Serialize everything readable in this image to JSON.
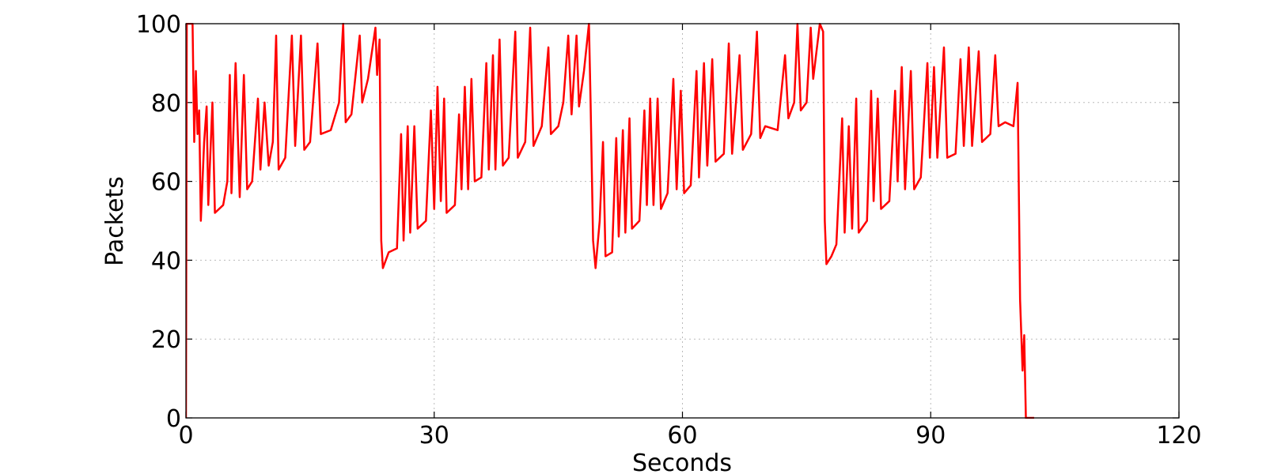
{
  "chart_data": {
    "type": "line",
    "x_label": "Seconds",
    "y_label": "Packets",
    "xlim": [
      0,
      120
    ],
    "ylim": [
      0,
      100
    ],
    "xticks": [
      0,
      30,
      60,
      90,
      120
    ],
    "yticks": [
      0,
      20,
      40,
      60,
      80,
      100
    ],
    "grid": true,
    "series": [
      {
        "name": "Packets",
        "color": "#ff0000",
        "x": [
          0,
          0.1,
          0.8,
          1.0,
          1.2,
          1.4,
          1.6,
          1.8,
          2.2,
          2.5,
          2.7,
          3.2,
          3.5,
          4.5,
          5.0,
          5.3,
          5.5,
          6.0,
          6.5,
          7.0,
          7.4,
          8.0,
          8.7,
          9.0,
          9.5,
          10.0,
          10.5,
          10.9,
          11.2,
          12.0,
          12.8,
          13.2,
          13.9,
          14.3,
          15.0,
          15.9,
          16.3,
          17.5,
          18.5,
          19.0,
          19.3,
          20.0,
          21.0,
          21.3,
          22.0,
          22.9,
          23.1,
          23.4,
          23.6,
          23.8,
          24.5,
          25.5,
          26.0,
          26.3,
          26.8,
          27.1,
          27.6,
          28.0,
          29.0,
          29.6,
          30.0,
          30.4,
          30.8,
          31.2,
          31.5,
          32.5,
          33.0,
          33.3,
          33.7,
          34.1,
          34.5,
          34.9,
          35.7,
          36.3,
          36.6,
          37.1,
          37.4,
          37.9,
          38.3,
          39.0,
          39.8,
          40.1,
          41.0,
          41.6,
          42.0,
          43.0,
          43.8,
          44.1,
          45.0,
          45.6,
          46.2,
          46.6,
          47.2,
          47.5,
          48.1,
          48.7,
          48.9,
          49.2,
          49.5,
          50.0,
          50.4,
          50.7,
          51.5,
          52.0,
          52.3,
          52.8,
          53.1,
          53.6,
          53.9,
          54.8,
          55.4,
          55.7,
          56.1,
          56.5,
          57.0,
          57.4,
          58.2,
          58.9,
          59.3,
          59.8,
          60.2,
          61.0,
          61.7,
          62.0,
          62.6,
          63.0,
          63.6,
          64.0,
          65.0,
          65.6,
          66.0,
          66.9,
          67.3,
          68.3,
          69.0,
          69.4,
          70.0,
          71.5,
          72.4,
          72.8,
          73.5,
          73.9,
          74.3,
          75.0,
          75.5,
          75.8,
          76.6,
          77.0,
          77.2,
          77.4,
          78.0,
          78.6,
          79.3,
          79.6,
          80.1,
          80.5,
          81.0,
          81.3,
          82.3,
          82.8,
          83.1,
          83.6,
          84.0,
          85.0,
          85.7,
          86.0,
          86.5,
          86.9,
          87.6,
          88.0,
          88.8,
          89.6,
          89.9,
          90.4,
          90.8,
          91.6,
          92.0,
          93.0,
          93.6,
          94.0,
          94.6,
          95.0,
          95.8,
          96.2,
          97.2,
          97.8,
          98.2,
          99.0,
          100.0,
          100.5,
          100.8,
          101.1,
          101.3,
          101.5,
          102.5
        ],
        "values": [
          0,
          100,
          100,
          70,
          88,
          72,
          78,
          50,
          70,
          79,
          54,
          80,
          52,
          54,
          60,
          87,
          57,
          90,
          56,
          87,
          58,
          60,
          81,
          63,
          80,
          64,
          70,
          97,
          63,
          66,
          97,
          69,
          97,
          68,
          70,
          95,
          72,
          73,
          80,
          100,
          75,
          77,
          97,
          80,
          86,
          99,
          87,
          96,
          45,
          38,
          42,
          43,
          72,
          45,
          74,
          47,
          74,
          48,
          50,
          78,
          53,
          84,
          55,
          81,
          52,
          54,
          77,
          58,
          84,
          58,
          86,
          60,
          61,
          90,
          63,
          92,
          63,
          96,
          64,
          66,
          98,
          66,
          70,
          99,
          69,
          74,
          94,
          72,
          74,
          80,
          97,
          77,
          97,
          79,
          88,
          100,
          80,
          45,
          38,
          50,
          70,
          41,
          42,
          71,
          46,
          73,
          47,
          76,
          48,
          50,
          78,
          54,
          81,
          54,
          81,
          53,
          57,
          86,
          58,
          83,
          57,
          59,
          88,
          61,
          90,
          64,
          91,
          65,
          67,
          95,
          67,
          92,
          68,
          72,
          98,
          71,
          74,
          73,
          92,
          76,
          80,
          100,
          78,
          80,
          99,
          86,
          100,
          98,
          50,
          39,
          41,
          44,
          76,
          47,
          74,
          48,
          81,
          47,
          50,
          83,
          55,
          81,
          53,
          55,
          83,
          60,
          89,
          58,
          88,
          58,
          61,
          90,
          66,
          89,
          66,
          94,
          66,
          67,
          91,
          69,
          94,
          69,
          93,
          70,
          72,
          92,
          74,
          75,
          74,
          85,
          30,
          12,
          21,
          0,
          0
        ]
      }
    ]
  }
}
